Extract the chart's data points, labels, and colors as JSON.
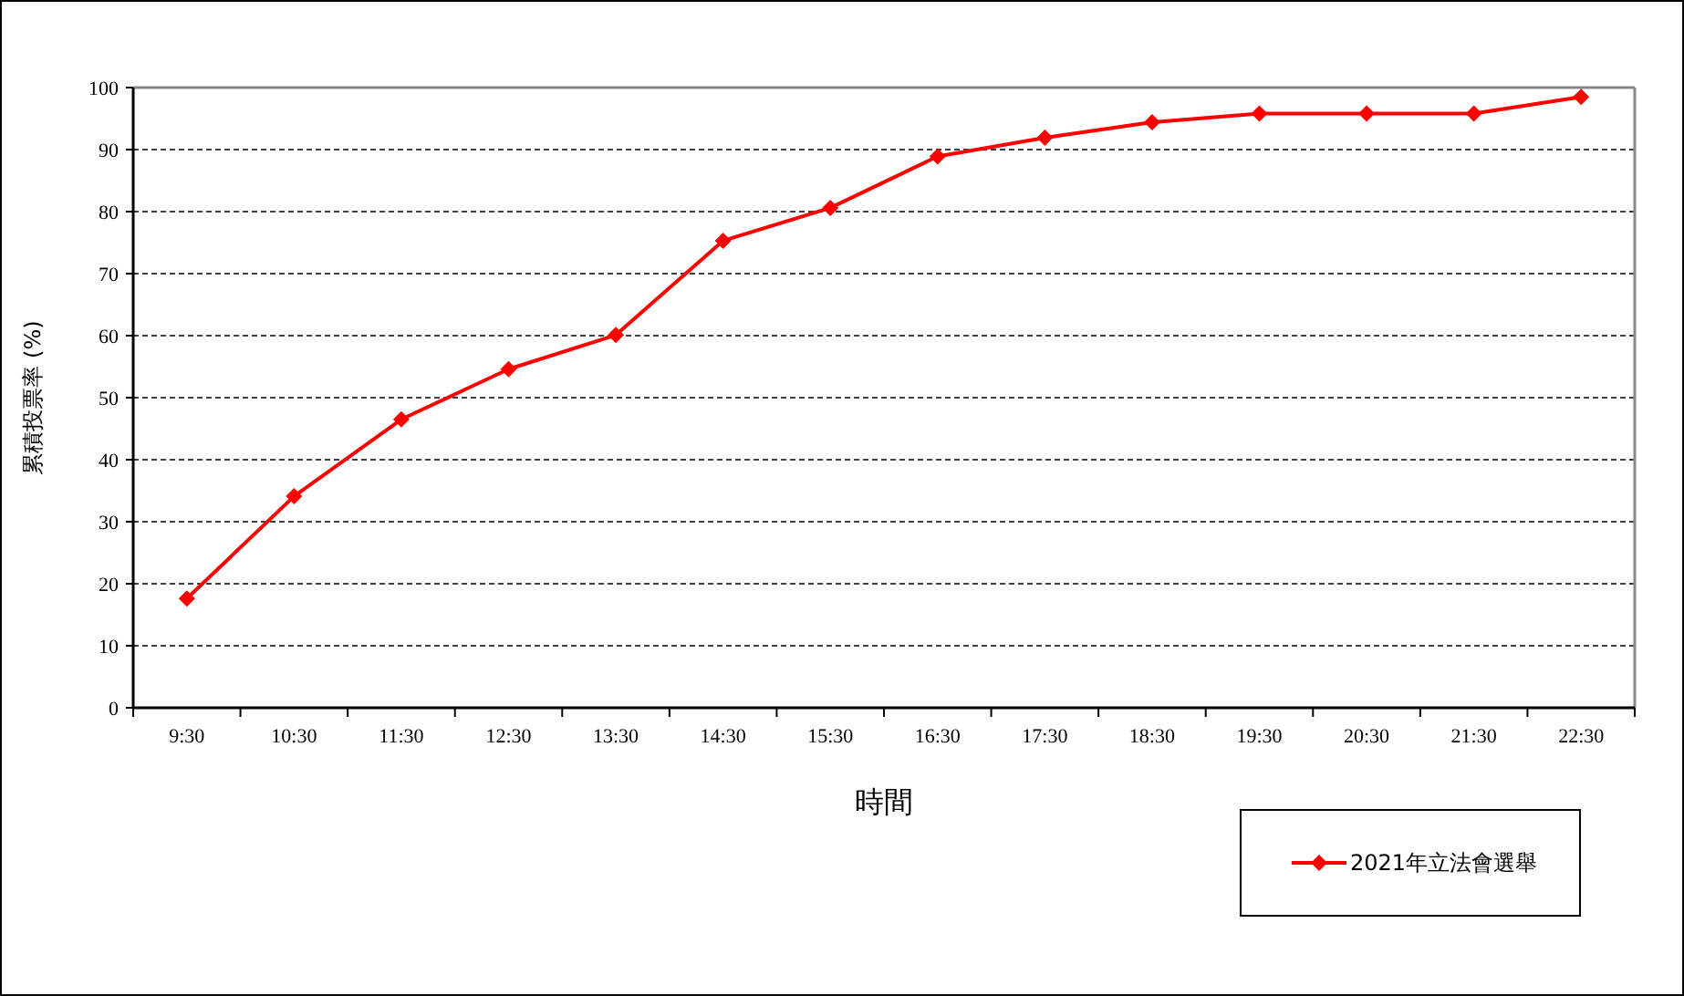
{
  "chart_data": {
    "type": "line",
    "xlabel": "時間",
    "ylabel": "累積投票率 (%)",
    "categories": [
      "9:30",
      "10:30",
      "11:30",
      "12:30",
      "13:30",
      "14:30",
      "15:30",
      "16:30",
      "17:30",
      "18:30",
      "19:30",
      "20:30",
      "21:30",
      "22:30"
    ],
    "series": [
      {
        "name": "2021年立法會選舉",
        "color": "#ff0000",
        "values": [
          17.6,
          34.1,
          46.5,
          54.6,
          60.1,
          75.3,
          80.6,
          88.9,
          91.9,
          94.4,
          95.8,
          95.8,
          95.8,
          98.5
        ]
      }
    ],
    "ylim": [
      0,
      100
    ],
    "yticks": [
      0,
      10,
      20,
      30,
      40,
      50,
      60,
      70,
      80,
      90,
      100
    ],
    "grid": "y",
    "legend": "bottom right",
    "marker": "diamond",
    "line_style": "solid"
  }
}
